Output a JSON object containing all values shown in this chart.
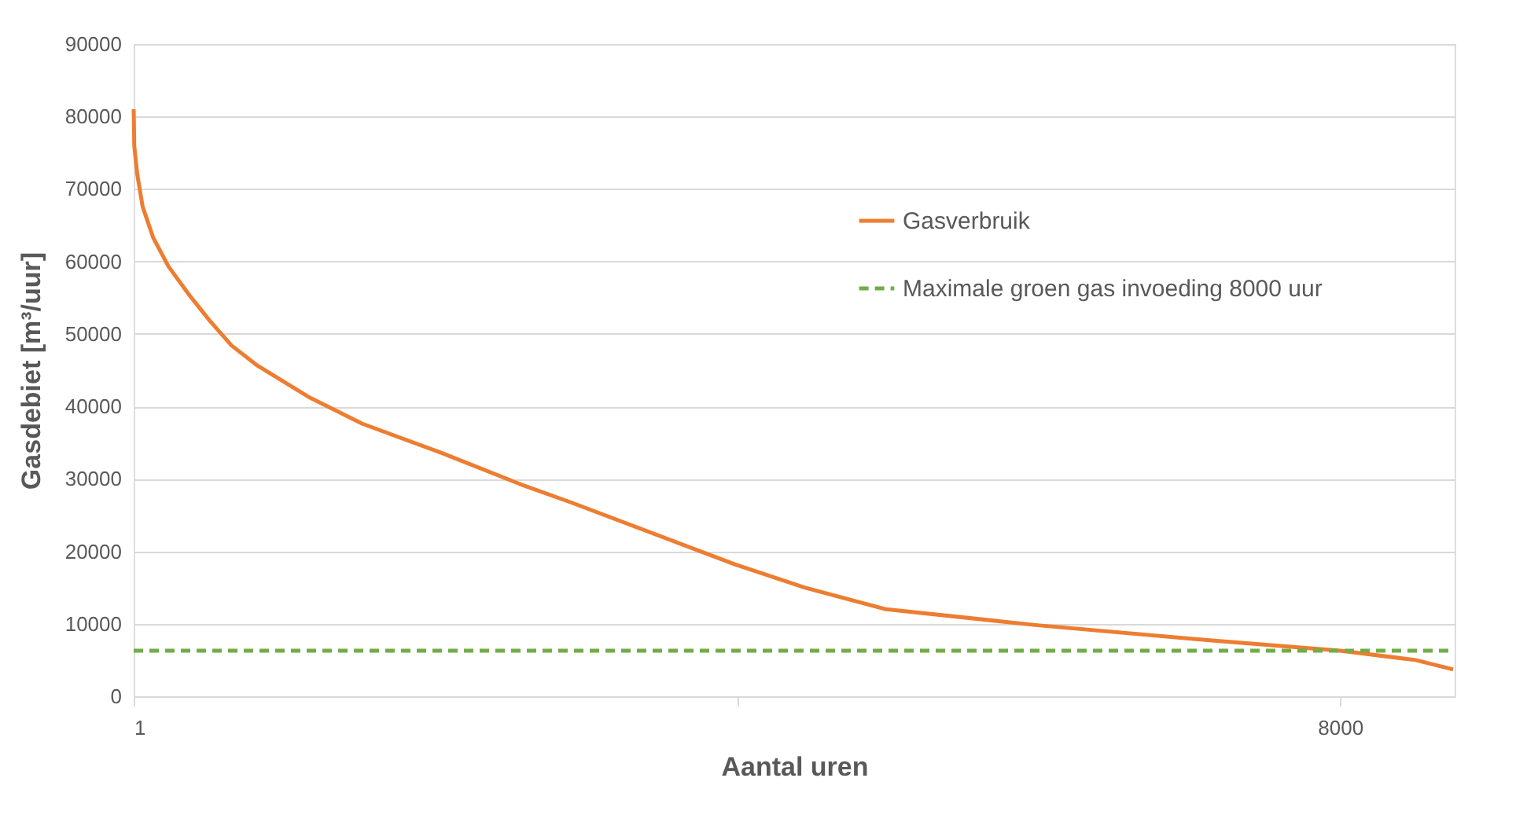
{
  "chart_data": {
    "type": "line",
    "xlabel": "Aantal uren",
    "ylabel": "Gasdebiet [m³/uur]",
    "xlim": [
      1,
      8760
    ],
    "xticks": [
      1,
      {
        "value": 4000,
        "label": null
      },
      8000
    ],
    "ylim": [
      0,
      90000
    ],
    "yticks": [
      0,
      10000,
      20000,
      30000,
      40000,
      50000,
      60000,
      70000,
      80000,
      90000
    ],
    "grid": "y",
    "legend": "right",
    "marker": "none",
    "series": [
      {
        "name": "Gasverbruik",
        "color": "#ed7d31",
        "line_style": "solid",
        "x": [
          1,
          5,
          25,
          60,
          130,
          232,
          372,
          510,
          650,
          823,
          1170,
          1518,
          2040,
          2560,
          2907,
          3987,
          4449,
          4990,
          5994,
          7151,
          8000,
          8500,
          8750
        ],
        "values": [
          81000,
          75900,
          72000,
          67600,
          63300,
          59300,
          55300,
          51700,
          48400,
          45600,
          41200,
          37600,
          33600,
          29300,
          26700,
          18200,
          15000,
          12000,
          9800,
          7700,
          6300,
          5000,
          3700
        ]
      },
      {
        "name": "Maximale groen gas invoeding 8000 uur",
        "color": "#70ad47",
        "line_style": "dashed",
        "x": [
          1,
          8760
        ],
        "values": [
          6300,
          6300
        ]
      }
    ]
  }
}
